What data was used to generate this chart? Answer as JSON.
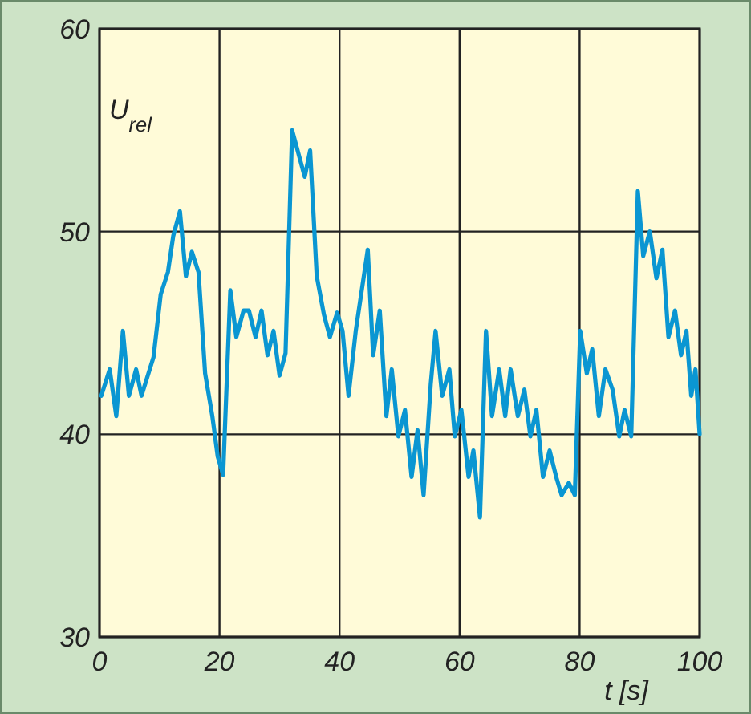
{
  "chart_data": {
    "type": "line",
    "xlabel": "t [s]",
    "ylabel": "U$_{rel}$",
    "x": [
      0.3,
      1.7,
      2.8,
      3.9,
      4.9,
      6.1,
      7.0,
      9.0,
      10.2,
      11.4,
      12.3,
      13.4,
      14.4,
      15.4,
      16.5,
      17.6,
      18.8,
      19.7,
      20.6,
      21.8,
      22.8,
      24.0,
      24.9,
      26.0,
      27.0,
      28.0,
      29.0,
      30.0,
      31.0,
      32.1,
      34.2,
      35.1,
      36.2,
      37.4,
      38.4,
      39.6,
      40.5,
      41.5,
      42.7,
      44.7,
      45.6,
      46.7,
      47.8,
      48.7,
      49.8,
      50.9,
      52.0,
      53.0,
      54.0,
      55.2,
      56.0,
      57.1,
      58.3,
      59.2,
      60.3,
      61.5,
      62.3,
      63.4,
      64.4,
      65.4,
      66.6,
      67.6,
      68.5,
      69.7,
      70.8,
      71.8,
      72.8,
      73.9,
      75.0,
      76.1,
      77.0,
      78.2,
      79.2,
      80.1,
      81.2,
      82.1,
      83.2,
      84.3,
      85.5,
      86.6,
      87.5,
      88.6,
      89.7,
      90.6,
      91.7,
      92.8,
      93.8,
      94.8,
      95.9,
      96.9,
      97.8,
      98.6,
      99.3,
      100
    ],
    "series": [
      {
        "color": "#0a96d2",
        "values": [
          41.9,
          43.2,
          40.9,
          45.1,
          41.9,
          43.2,
          41.9,
          43.8,
          46.9,
          48.0,
          49.8,
          51.0,
          47.8,
          49.0,
          48.0,
          43.0,
          40.9,
          38.9,
          38.0,
          47.1,
          44.8,
          46.1,
          46.1,
          44.8,
          46.1,
          43.9,
          45.1,
          42.9,
          44.0,
          55.0,
          52.7,
          54.0,
          47.8,
          45.9,
          44.8,
          46.0,
          45.1,
          41.9,
          45.1,
          49.1,
          43.9,
          46.1,
          40.9,
          43.2,
          39.9,
          41.2,
          37.9,
          40.2,
          37.0,
          42.5,
          45.1,
          41.9,
          43.2,
          39.9,
          41.2,
          37.9,
          39.2,
          35.9,
          45.1,
          40.9,
          43.2,
          40.9,
          43.2,
          40.9,
          42.2,
          39.9,
          41.2,
          37.9,
          39.2,
          37.9,
          37.0,
          37.6,
          37.0,
          45.1,
          43.0,
          44.2,
          40.9,
          43.2,
          42.2,
          39.9,
          41.2,
          39.9,
          52.0,
          48.8,
          50.0,
          47.7,
          49.1,
          44.8,
          46.1,
          43.9,
          45.1,
          41.9,
          43.2,
          40.0
        ]
      }
    ],
    "xlim": [
      0,
      100
    ],
    "xticks": [
      0,
      20,
      40,
      60,
      80,
      100
    ],
    "ylim": [
      30,
      60
    ],
    "yticks": [
      30,
      40,
      50,
      60
    ],
    "grid": true,
    "marker": "none",
    "line_style": "solid"
  }
}
